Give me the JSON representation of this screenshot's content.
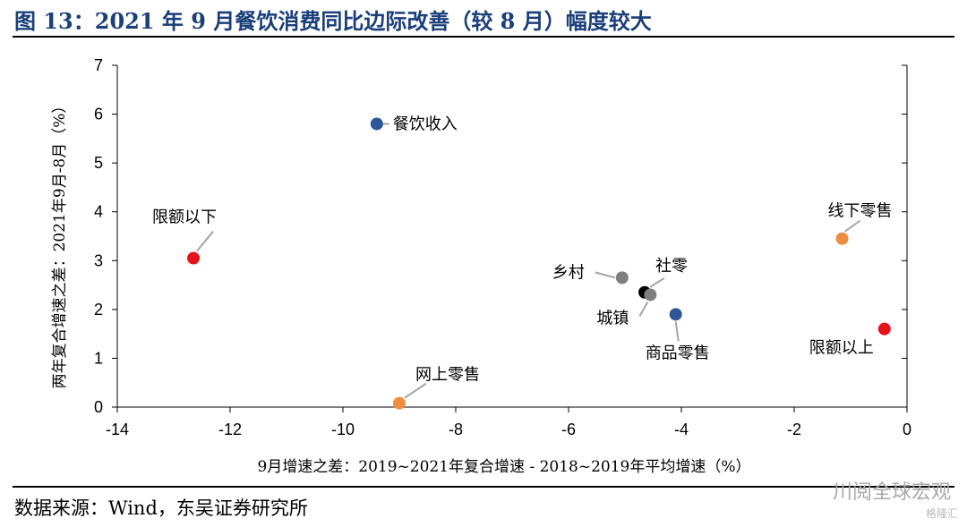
{
  "header": {
    "title": "图 13：2021 年 9 月餐饮消费同比边际改善（较 8 月）幅度较大"
  },
  "footer": {
    "source": "数据来源：Wind，东吴证券研究所"
  },
  "watermark": {
    "text": "川阅全球宏观",
    "sub": "格隆汇"
  },
  "colors": {
    "blue": "#2e5596",
    "red": "#e8121b",
    "orange": "#ef8c3e",
    "gray": "#7f7f7f",
    "black": "#000000",
    "title": "#1a3f7a"
  },
  "chart_data": {
    "type": "scatter",
    "title": "",
    "xlabel": "9月增速之差：2019~2021年复合增速 - 2018~2019年平均增速（%）",
    "ylabel": "两年复合增速之差：2021年9月-8月（%）",
    "xlim": [
      -14,
      0
    ],
    "ylim": [
      0,
      7
    ],
    "xticks": [
      "-14",
      "-12",
      "-10",
      "-8",
      "-6",
      "-4",
      "-2",
      "0"
    ],
    "yticks": [
      "0",
      "1",
      "2",
      "3",
      "4",
      "5",
      "6",
      "7"
    ],
    "points": [
      {
        "label": "餐饮收入",
        "x": -9.4,
        "y": 5.8,
        "color": "blue"
      },
      {
        "label": "限额以下",
        "x": -12.65,
        "y": 3.05,
        "color": "red"
      },
      {
        "label": "线下零售",
        "x": -1.15,
        "y": 3.45,
        "color": "orange"
      },
      {
        "label": "乡村",
        "x": -5.05,
        "y": 2.65,
        "color": "gray"
      },
      {
        "label": "社零",
        "x": -4.65,
        "y": 2.35,
        "color": "black"
      },
      {
        "label": "城镇",
        "x": -4.55,
        "y": 2.3,
        "color": "gray"
      },
      {
        "label": "商品零售",
        "x": -4.1,
        "y": 1.9,
        "color": "blue"
      },
      {
        "label": "限额以上",
        "x": -0.4,
        "y": 1.6,
        "color": "red"
      },
      {
        "label": "网上零售",
        "x": -9.0,
        "y": 0.08,
        "color": "orange"
      }
    ]
  }
}
